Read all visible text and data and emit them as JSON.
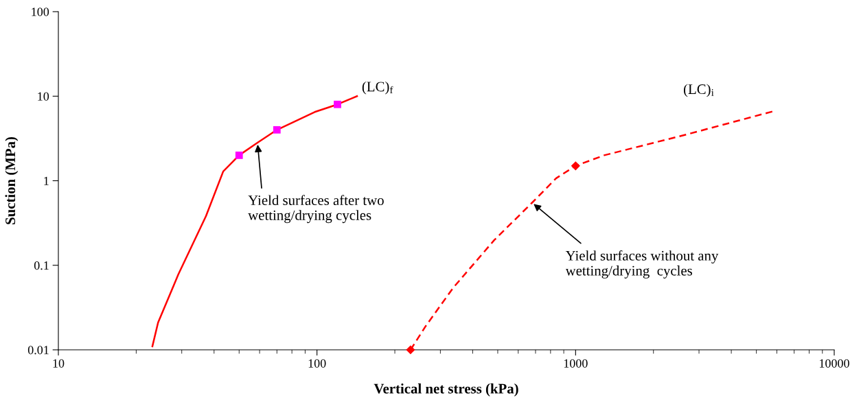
{
  "chart_data": {
    "type": "line",
    "xlabel": "Vertical net stress (kPa)",
    "ylabel": "Suction (MPa)",
    "log": "xy",
    "xlim": [
      10,
      10000
    ],
    "ylim": [
      0.01,
      100
    ],
    "xticks": [
      10,
      100,
      1000,
      10000
    ],
    "yticks": [
      0.01,
      0.1,
      1,
      10,
      100
    ],
    "grid": false,
    "legend": false,
    "series": [
      {
        "name": "(LC)$_{f}$",
        "color": "#ff0000",
        "line_style": "solid",
        "marker": "none",
        "x": [
          23.1,
          24.3,
          29.1,
          37.2,
          43.4,
          50,
          58.9,
          70,
          98,
          120,
          142.8
        ],
        "values": [
          0.011,
          0.021,
          0.078,
          0.38,
          1.29,
          2,
          2.82,
          4,
          6.5,
          8,
          10
        ]
      },
      {
        "type": "scatter",
        "color": "#ff00ff",
        "marker": "square",
        "x": [
          50,
          70,
          120
        ],
        "values": [
          2,
          4,
          8
        ]
      },
      {
        "name": "(LC)$_{i}$",
        "color": "#ff0000",
        "line_style": "dashed",
        "marker": "none",
        "x": [
          230,
          263,
          336,
          485,
          679,
          841,
          1000,
          1290,
          2690,
          5840
        ],
        "values": [
          0.01,
          0.019,
          0.054,
          0.199,
          0.55,
          1.07,
          1.5,
          2.0,
          3.53,
          6.66
        ]
      },
      {
        "type": "scatter",
        "color": "#ff0000",
        "marker": "diamond",
        "x": [
          230,
          1000
        ],
        "values": [
          0.01,
          1.5
        ]
      }
    ],
    "annotations": [
      {
        "text": "Yield surfaces after two\nwetting/drying cycles",
        "x": 58.9,
        "y": 2.82
      },
      {
        "text": "Yield surfaces without any\nwetting/drying  cycles",
        "x": 679,
        "y": 0.55
      }
    ]
  }
}
